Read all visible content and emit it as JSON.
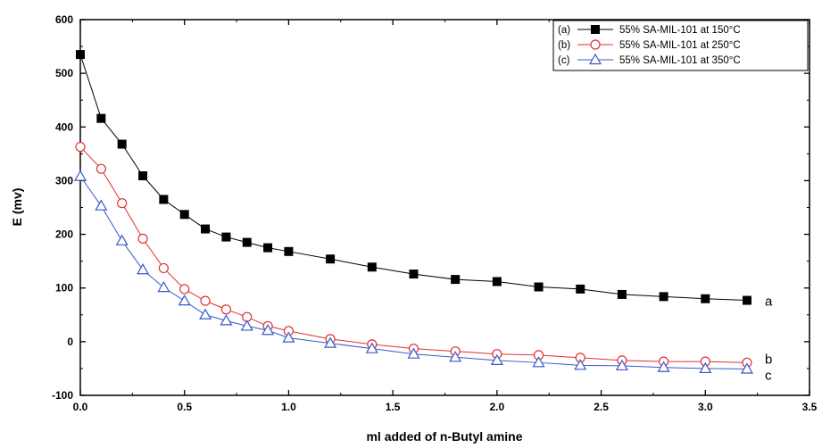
{
  "chart_data": {
    "type": "line",
    "xlabel": "ml added of n-Butyl amine",
    "ylabel": "E (mv)",
    "xlim": [
      0,
      3.5
    ],
    "ylim": [
      -100,
      600
    ],
    "xticks": [
      "0.0",
      "0.5",
      "1.0",
      "1.5",
      "2.0",
      "2.5",
      "3.0",
      "3.5"
    ],
    "yticks": [
      "-100",
      "0",
      "100",
      "200",
      "300",
      "400",
      "500",
      "600"
    ],
    "grid": false,
    "legend_position": "top-right",
    "x": [
      0,
      0.1,
      0.2,
      0.3,
      0.4,
      0.5,
      0.6,
      0.7,
      0.8,
      0.9,
      1.0,
      1.2,
      1.4,
      1.6,
      1.8,
      2.0,
      2.2,
      2.4,
      2.6,
      2.8,
      3.0,
      3.2
    ],
    "series": [
      {
        "name": "(a) 55% SA-MIL-101 at 150°C",
        "end_label": "a",
        "marker": "square-filled",
        "color": "#000000",
        "values": [
          535,
          416,
          368,
          309,
          265,
          237,
          210,
          195,
          185,
          175,
          168,
          154,
          139,
          126,
          116,
          112,
          102,
          98,
          88,
          84,
          80,
          77
        ]
      },
      {
        "name": "(b) 55% SA-MIL-101 at 250°C",
        "end_label": "b",
        "marker": "circle-open",
        "color": "#e03030",
        "values": [
          363,
          322,
          258,
          192,
          137,
          98,
          76,
          60,
          46,
          29,
          20,
          5,
          -5,
          -13,
          -18,
          -23,
          -25,
          -30,
          -35,
          -37,
          -37,
          -39
        ]
      },
      {
        "name": "(c) 55% SA-MIL-101 at 350°C",
        "end_label": "c",
        "marker": "triangle-open",
        "color": "#3a58c8",
        "values": [
          308,
          253,
          188,
          134,
          101,
          76,
          50,
          39,
          29,
          21,
          7,
          -3,
          -13,
          -23,
          -29,
          -35,
          -39,
          -44,
          -45,
          -48,
          -50,
          -51
        ]
      }
    ]
  }
}
